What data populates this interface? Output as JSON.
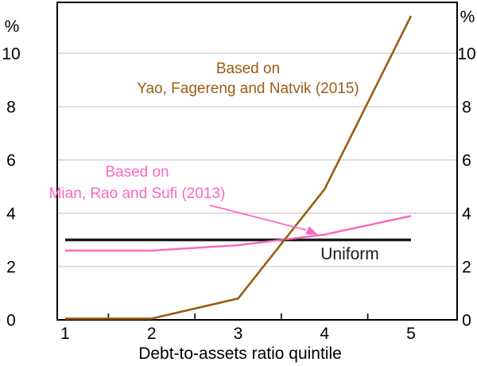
{
  "figure": {
    "left_axis_unit": "%",
    "right_axis_unit": "%",
    "x_axis_title": "Debt-to-assets ratio quintile"
  },
  "annotations": {
    "yao": {
      "line1": "Based on",
      "line2": "Yao, Fagereng and Natvik (2015)",
      "color": "#9b5c12"
    },
    "mian": {
      "line1": "Based on",
      "line2": "Mian, Rao and Sufi (2013)",
      "color": "#f968be"
    },
    "uniform": {
      "label": "Uniform",
      "color": "#1a1a1a"
    }
  },
  "chart_data": {
    "type": "line",
    "title": "",
    "xlabel": "Debt-to-assets ratio quintile",
    "ylabel": "%",
    "categories": [
      1,
      2,
      3,
      4,
      5
    ],
    "series": [
      {
        "name": "Based on Yao, Fagereng and Natvik (2015)",
        "color": "#9b5c12",
        "values": [
          0.0,
          0.0,
          0.8,
          4.9,
          11.4
        ]
      },
      {
        "name": "Based on Mian, Rao and Sufi (2013)",
        "color": "#f968be",
        "values": [
          2.6,
          2.6,
          2.8,
          3.2,
          3.9
        ]
      },
      {
        "name": "Uniform",
        "color": "#1a1a1a",
        "values": [
          3.0,
          3.0,
          3.0,
          3.0,
          3.0
        ]
      }
    ],
    "ylim": [
      0,
      12
    ],
    "yticks": [
      0,
      2,
      4,
      6,
      8,
      10
    ],
    "xticks_minor": [
      1.5,
      2.5,
      3.5,
      4.5
    ],
    "grid": true,
    "legend_position": "inline-annotations"
  },
  "colors": {
    "grid": "#c9c9c9",
    "frame": "#000000",
    "background": "#ffffff"
  }
}
